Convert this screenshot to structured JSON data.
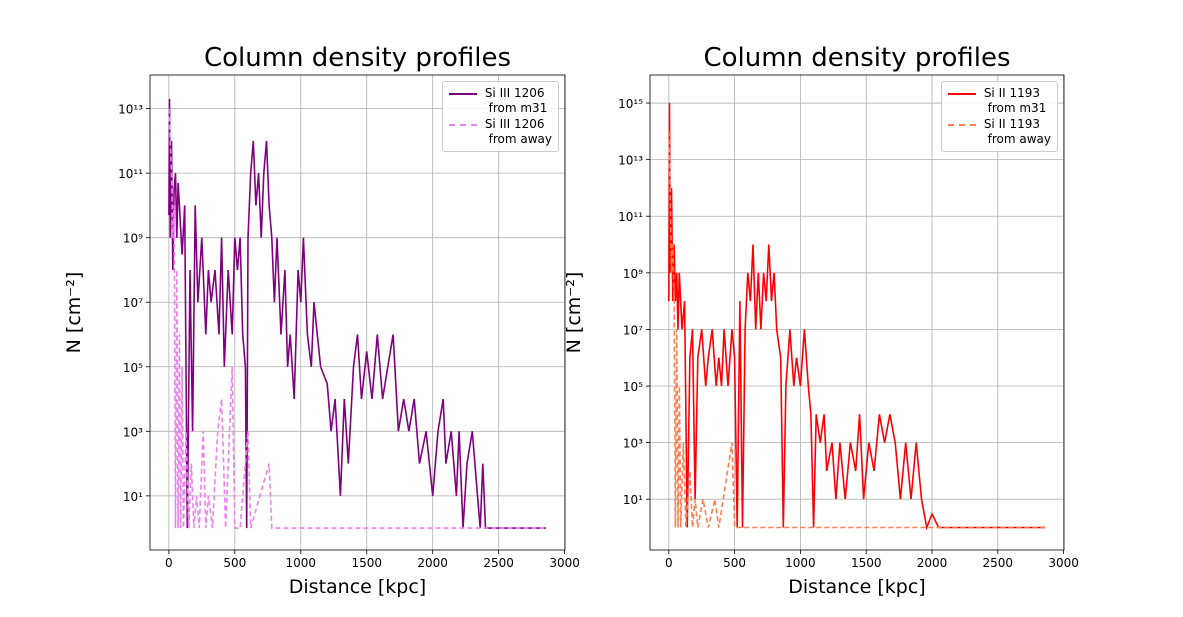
{
  "chart_data": [
    {
      "type": "line",
      "title": "Column density profiles",
      "x_label": "Distance [kpc]",
      "y_label": "N [cm⁻²]",
      "log_y": true,
      "grid": true,
      "legend": "upper right",
      "xlim": [
        -143,
        3003
      ],
      "xticks": [
        0,
        500,
        1000,
        1500,
        2000,
        2500,
        3000
      ],
      "ylim": [
        0.21,
        110000000000000.0
      ],
      "yticks": [
        {
          "value": 10,
          "label": "10¹"
        },
        {
          "value": 1000,
          "label": "10³"
        },
        {
          "value": 100000,
          "label": "10⁵"
        },
        {
          "value": 10000000,
          "label": "10⁷"
        },
        {
          "value": 1000000000,
          "label": "10⁹"
        },
        {
          "value": 100000000000,
          "label": "10¹¹"
        },
        {
          "value": 10000000000000,
          "label": "10¹³"
        }
      ],
      "series": [
        {
          "name": "Si III 1206\n from m31",
          "color": "#800080",
          "dash": false,
          "x": [
            0,
            5,
            10,
            20,
            30,
            40,
            50,
            60,
            70,
            80,
            100,
            120,
            140,
            160,
            180,
            200,
            220,
            250,
            280,
            300,
            320,
            350,
            380,
            400,
            420,
            450,
            480,
            500,
            520,
            540,
            560,
            580,
            590,
            600,
            620,
            640,
            660,
            680,
            700,
            720,
            740,
            760,
            780,
            800,
            820,
            850,
            880,
            900,
            920,
            950,
            980,
            1000,
            1020,
            1050,
            1080,
            1100,
            1150,
            1200,
            1230,
            1260,
            1300,
            1330,
            1360,
            1400,
            1430,
            1460,
            1500,
            1540,
            1580,
            1620,
            1660,
            1700,
            1740,
            1780,
            1820,
            1860,
            1900,
            1950,
            2000,
            2040,
            2080,
            2100,
            2140,
            2180,
            2200,
            2230,
            2260,
            2300,
            2340,
            2360,
            2380,
            2400,
            2860
          ],
          "values": [
            5000000000.0,
            20000000000000.0,
            1000000000.0,
            1000000000000.0,
            100000000.0,
            30000000000.0,
            100000000000.0,
            1000000000.0,
            50000000000.0,
            10000000000.0,
            300000000.0,
            10000000000.0,
            1,
            100000000.0,
            1000,
            10000000000.0,
            10000000.0,
            1000000000.0,
            1000000.0,
            100000000.0,
            10000000.0,
            100000000.0,
            1000000.0,
            1000000000.0,
            100000.0,
            100000000.0,
            1000000.0,
            1000000000.0,
            100000000.0,
            1000000000.0,
            1000000.0,
            100000.0,
            1,
            1000000000.0,
            100000000000.0,
            1000000000000.0,
            10000000000.0,
            100000000000.0,
            1000000000.0,
            100000000000.0,
            1000000000000.0,
            10000000000.0,
            1000000000.0,
            10000000.0,
            1000000000.0,
            1000000.0,
            100000000.0,
            100000.0,
            1000000.0,
            10000.0,
            100000000.0,
            10000000.0,
            1000000000.0,
            1000000.0,
            100000.0,
            10000000.0,
            100000.0,
            30000.0,
            1000,
            10000.0,
            10,
            10000.0,
            100,
            100000.0,
            1000000.0,
            10000.0,
            300000.0,
            10000.0,
            1000000.0,
            10000.0,
            100000.0,
            1000000.0,
            1000,
            10000.0,
            1000,
            10000.0,
            100,
            1000,
            10,
            1000,
            10000.0,
            100,
            1000,
            10,
            1000,
            1,
            100,
            1000,
            10,
            1,
            100,
            1,
            1
          ]
        },
        {
          "name": "Si III 1206\n from away",
          "color": "#ee82ee",
          "dash": true,
          "x": [
            0,
            10,
            20,
            30,
            40,
            50,
            60,
            70,
            80,
            90,
            100,
            110,
            130,
            150,
            170,
            190,
            210,
            230,
            260,
            280,
            300,
            330,
            370,
            400,
            430,
            460,
            480,
            500,
            540,
            560,
            600,
            620,
            760,
            780,
            2860
          ],
          "values": [
            10000000000000.0,
            1000000000000.0,
            100000000000.0,
            1000000000.0,
            10000000000.0,
            1,
            100000000.0,
            1,
            1000000.0,
            1,
            100000.0,
            1,
            1000,
            1,
            100,
            1,
            10,
            1,
            1000,
            1,
            10,
            1,
            1000,
            10000.0,
            1,
            1000,
            100000.0,
            1,
            1,
            10,
            1000,
            1,
            100,
            1,
            1
          ]
        }
      ]
    },
    {
      "type": "line",
      "title": "Column density profiles",
      "x_label": "Distance [kpc]",
      "y_label": "N [cm⁻²]",
      "log_y": true,
      "grid": true,
      "legend": "upper right",
      "xlim": [
        -143,
        3003
      ],
      "xticks": [
        0,
        500,
        1000,
        1500,
        2000,
        2500,
        3000
      ],
      "ylim": [
        0.16,
        9800000000000000.0
      ],
      "yticks": [
        {
          "value": 10,
          "label": "10¹"
        },
        {
          "value": 1000,
          "label": "10³"
        },
        {
          "value": 100000,
          "label": "10⁵"
        },
        {
          "value": 10000000,
          "label": "10⁷"
        },
        {
          "value": 1000000000,
          "label": "10⁹"
        },
        {
          "value": 100000000000,
          "label": "10¹¹"
        },
        {
          "value": 10000000000000,
          "label": "10¹³"
        },
        {
          "value": 1000000000000000,
          "label": "10¹⁵"
        }
      ],
      "series": [
        {
          "name": "Si II 1193\n from m31",
          "color": "#ff0000",
          "dash": false,
          "x": [
            0,
            5,
            10,
            20,
            30,
            40,
            50,
            60,
            70,
            80,
            100,
            120,
            140,
            160,
            180,
            200,
            220,
            250,
            280,
            300,
            330,
            360,
            380,
            400,
            420,
            450,
            480,
            500,
            520,
            540,
            560,
            580,
            600,
            620,
            640,
            660,
            680,
            700,
            720,
            740,
            760,
            780,
            800,
            820,
            850,
            870,
            890,
            920,
            950,
            970,
            1000,
            1030,
            1060,
            1080,
            1100,
            1120,
            1150,
            1180,
            1200,
            1240,
            1270,
            1300,
            1340,
            1380,
            1420,
            1450,
            1480,
            1520,
            1560,
            1600,
            1640,
            1680,
            1720,
            1760,
            1800,
            1840,
            1880,
            1920,
            1960,
            2000,
            2050,
            2860
          ],
          "values": [
            100000000.0,
            1000000000000000.0,
            1000000000.0,
            1000000000000.0,
            100000000.0,
            10000000000.0,
            100000000.0,
            1000000000.0,
            10000000.0,
            1000000000.0,
            10000000.0,
            100000000.0,
            1,
            1000000.0,
            10000000.0,
            10,
            1000000.0,
            10000000.0,
            100000.0,
            1000000.0,
            10000000.0,
            100000.0,
            1000000.0,
            100000.0,
            10000000.0,
            100000.0,
            10000000.0,
            1000000.0,
            1,
            100000000.0,
            1,
            10000000.0,
            1000000000.0,
            100000000.0,
            10000000000.0,
            10000000.0,
            1000000000.0,
            10000000.0,
            1000000000.0,
            100000000.0,
            10000000000.0,
            100000000.0,
            1000000000.0,
            10000000.0,
            1000000.0,
            1,
            100000.0,
            10000000.0,
            100000.0,
            1000000.0,
            100000.0,
            10000000.0,
            100000.0,
            10000.0,
            1,
            10000.0,
            1000,
            10000.0,
            100,
            1000,
            10,
            1000,
            10,
            1000,
            100,
            10000.0,
            10,
            1000,
            100,
            10000.0,
            1000,
            10000.0,
            1000,
            10,
            1000,
            10,
            1000,
            10,
            1,
            3,
            1,
            1
          ]
        },
        {
          "name": "Si II 1193\n from away",
          "color": "#ff7f50",
          "dash": true,
          "x": [
            0,
            10,
            20,
            30,
            40,
            50,
            60,
            70,
            80,
            90,
            110,
            130,
            160,
            180,
            200,
            220,
            260,
            300,
            350,
            380,
            480,
            500,
            2860
          ],
          "values": [
            100000000000000.0,
            1000000000000.0,
            1000000000.0,
            10000000000.0,
            100000000.0,
            1,
            10000000.0,
            1,
            100000.0,
            1,
            1000,
            1,
            100,
            1,
            10,
            1,
            10,
            1,
            10,
            1,
            1000,
            1,
            1
          ]
        }
      ]
    }
  ]
}
